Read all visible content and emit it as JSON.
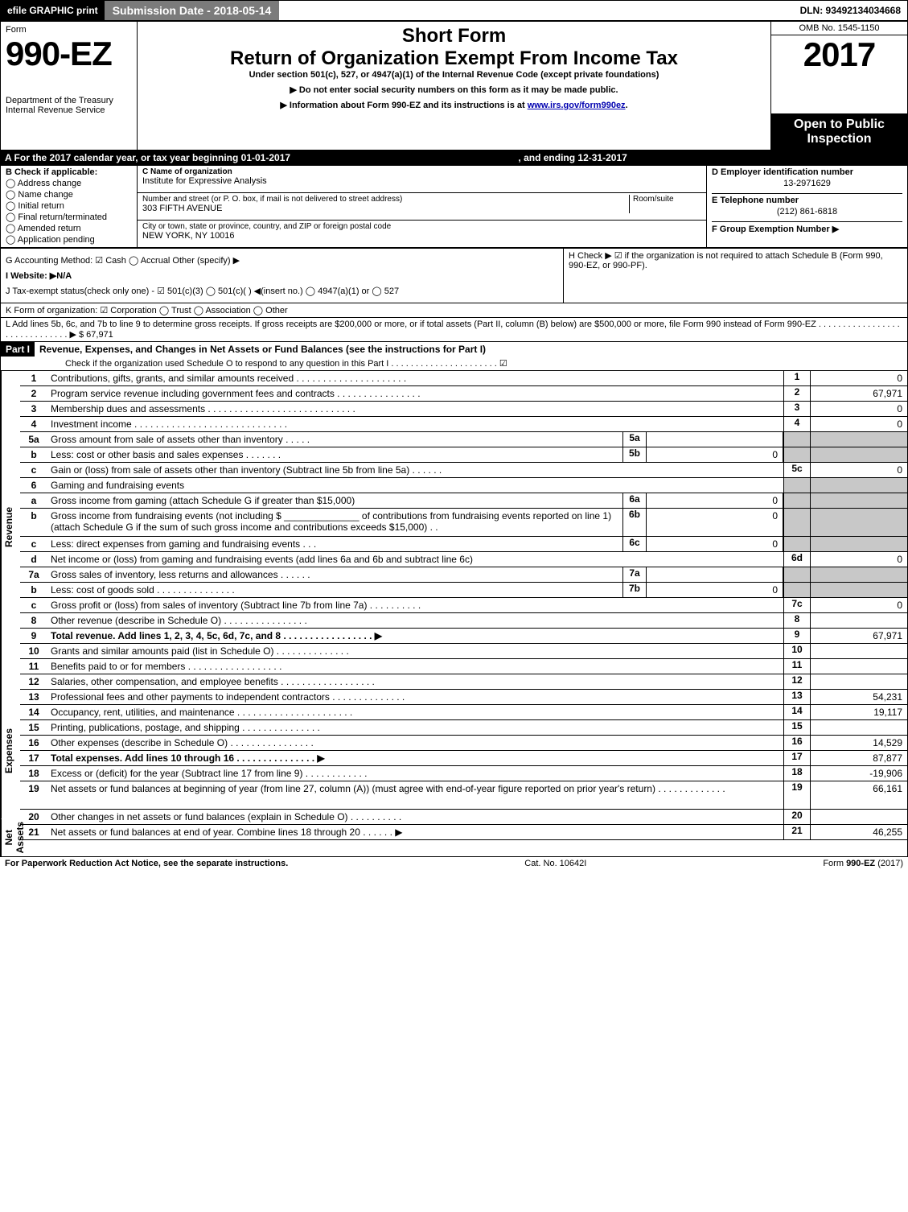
{
  "topbar": {
    "efile": "efile GRAPHIC print",
    "subdate": "Submission Date - 2018-05-14",
    "dln": "DLN: 93492134034668"
  },
  "header": {
    "form_word": "Form",
    "form_number": "990-EZ",
    "dept": "Department of the Treasury",
    "irs": "Internal Revenue Service",
    "short": "Short Form",
    "main": "Return of Organization Exempt From Income Tax",
    "sub": "Under section 501(c), 527, or 4947(a)(1) of the Internal Revenue Code (except private foundations)",
    "note1": "▶ Do not enter social security numbers on this form as it may be made public.",
    "note2": "▶ Information about Form 990-EZ and its instructions is at www.irs.gov/form990ez.",
    "omb": "OMB No. 1545-1150",
    "year": "2017",
    "open": "Open to Public Inspection"
  },
  "period": {
    "a": "A  For the 2017 calendar year, or tax year beginning 01-01-2017",
    "ending": ", and ending 12-31-2017"
  },
  "boxB": {
    "label": "B  Check if applicable:",
    "items": [
      "Address change",
      "Name change",
      "Initial return",
      "Final return/terminated",
      "Amended return",
      "Application pending"
    ]
  },
  "boxC": {
    "label": "C Name of organization",
    "name": "Institute for Expressive Analysis",
    "street_label": "Number and street (or P. O. box, if mail is not delivered to street address)",
    "room_label": "Room/suite",
    "street": "303 FIFTH AVENUE",
    "city_label": "City or town, state or province, country, and ZIP or foreign postal code",
    "city": "NEW YORK, NY  10016"
  },
  "boxD": {
    "label": "D Employer identification number",
    "value": "13-2971629"
  },
  "boxE": {
    "label": "E Telephone number",
    "value": "(212) 861-6818"
  },
  "boxF": {
    "label": "F Group Exemption Number    ▶"
  },
  "lineG": "G Accounting Method:   ☑ Cash   ◯ Accrual   Other (specify) ▶",
  "lineH": {
    "text": "H   Check ▶  ☑  if the organization is not required to attach Schedule B (Form 990, 990-EZ, or 990-PF)."
  },
  "lineI": "I Website: ▶N/A",
  "lineJ": "J Tax-exempt status(check only one) - ☑ 501(c)(3) ◯ 501(c)(  ) ◀(insert no.) ◯ 4947(a)(1) or ◯ 527",
  "lineK": "K Form of organization:   ☑ Corporation   ◯ Trust   ◯ Association   ◯ Other",
  "lineL": {
    "text": "L Add lines 5b, 6c, and 7b to line 9 to determine gross receipts. If gross receipts are $200,000 or more, or if total assets (Part II, column (B) below) are $500,000 or more, file Form 990 instead of Form 990-EZ  . . . . . . . . . . . . . . . . . . . . . . . . . . . . . . ▶ $ 67,971"
  },
  "partI": {
    "tag": "Part I",
    "title": "Revenue, Expenses, and Changes in Net Assets or Fund Balances (see the instructions for Part I)",
    "check": "Check if the organization used Schedule O to respond to any question in this Part I  . . . . . . . . . . . . . . . . . . . . . .  ☑"
  },
  "sections": {
    "revenue": "Revenue",
    "expenses": "Expenses",
    "netassets": "Net Assets"
  },
  "rows": [
    {
      "sec": "revenue",
      "ln": "1",
      "desc": "Contributions, gifts, grants, and similar amounts received  . . . . . . . . . . . . . . . . . . . . .",
      "num": "1",
      "val": "0"
    },
    {
      "sec": "revenue",
      "ln": "2",
      "desc": "Program service revenue including government fees and contracts  . . . . . . . . . . . . . . . .",
      "num": "2",
      "val": "67,971"
    },
    {
      "sec": "revenue",
      "ln": "3",
      "desc": "Membership dues and assessments  . . . . . . . . . . . . . . . . . . . . . . . . . . . .",
      "num": "3",
      "val": "0"
    },
    {
      "sec": "revenue",
      "ln": "4",
      "desc": "Investment income  . . . . . . . . . . . . . . . . . . . . . . . . . . . . .",
      "num": "4",
      "val": "0"
    },
    {
      "sec": "revenue",
      "ln": "5a",
      "desc": "Gross amount from sale of assets other than inventory  . . . . .",
      "sub_ln": "5a",
      "sub_val": "",
      "grey_right": true
    },
    {
      "sec": "revenue",
      "ln": "b",
      "desc": "Less: cost or other basis and sales expenses  . . . . . . .",
      "sub_ln": "5b",
      "sub_val": "0",
      "grey_right": true
    },
    {
      "sec": "revenue",
      "ln": "c",
      "desc": "Gain or (loss) from sale of assets other than inventory (Subtract line 5b from line 5a)  . . . . . .",
      "num": "5c",
      "val": "0"
    },
    {
      "sec": "revenue",
      "ln": "6",
      "desc": "Gaming and fundraising events",
      "grey_right": true,
      "no_num": true
    },
    {
      "sec": "revenue",
      "ln": "a",
      "desc": "Gross income from gaming (attach Schedule G if greater than $15,000)",
      "sub_ln": "6a",
      "sub_val": "0",
      "grey_right": true
    },
    {
      "sec": "revenue",
      "ln": "b",
      "desc": "Gross income from fundraising events (not including $ ______________ of contributions from fundraising events reported on line 1) (attach Schedule G if the sum of such gross income and contributions exceeds $15,000)     . .",
      "sub_ln": "6b",
      "sub_val": "0",
      "grey_right": true,
      "multi": true
    },
    {
      "sec": "revenue",
      "ln": "c",
      "desc": "Less: direct expenses from gaming and fundraising events         . . .",
      "sub_ln": "6c",
      "sub_val": "0",
      "grey_right": true
    },
    {
      "sec": "revenue",
      "ln": "d",
      "desc": "Net income or (loss) from gaming and fundraising events (add lines 6a and 6b and subtract line 6c)",
      "num": "6d",
      "val": "0"
    },
    {
      "sec": "revenue",
      "ln": "7a",
      "desc": "Gross sales of inventory, less returns and allowances  . . . . . .",
      "sub_ln": "7a",
      "sub_val": "",
      "grey_right": true
    },
    {
      "sec": "revenue",
      "ln": "b",
      "desc": "Less: cost of goods sold          . . . . . . . . . . . . . . .",
      "sub_ln": "7b",
      "sub_val": "0",
      "grey_right": true
    },
    {
      "sec": "revenue",
      "ln": "c",
      "desc": "Gross profit or (loss) from sales of inventory (Subtract line 7b from line 7a)  . . . . . . . . . .",
      "num": "7c",
      "val": "0"
    },
    {
      "sec": "revenue",
      "ln": "8",
      "desc": "Other revenue (describe in Schedule O)          . . . . . . . . . . . . . . . .",
      "num": "8",
      "val": ""
    },
    {
      "sec": "revenue",
      "ln": "9",
      "desc": "Total revenue. Add lines 1, 2, 3, 4, 5c, 6d, 7c, and 8   . . . . . . . . . . . . . . . . . ▶",
      "num": "9",
      "val": "67,971",
      "bold": true
    },
    {
      "sec": "expenses",
      "ln": "10",
      "desc": "Grants and similar amounts paid (list in Schedule O)          . . . . . . . . . . . . . .",
      "num": "10",
      "val": ""
    },
    {
      "sec": "expenses",
      "ln": "11",
      "desc": "Benefits paid to or for members          . . . . . . . . . . . . . . . . . .",
      "num": "11",
      "val": ""
    },
    {
      "sec": "expenses",
      "ln": "12",
      "desc": "Salaries, other compensation, and employee benefits . . . . . . . . . . . . . . . . . .",
      "num": "12",
      "val": ""
    },
    {
      "sec": "expenses",
      "ln": "13",
      "desc": "Professional fees and other payments to independent contractors  . . . . . . . . . . . . . .",
      "num": "13",
      "val": "54,231"
    },
    {
      "sec": "expenses",
      "ln": "14",
      "desc": "Occupancy, rent, utilities, and maintenance . . . . . . . . . . . . . . . . . . . . . .",
      "num": "14",
      "val": "19,117"
    },
    {
      "sec": "expenses",
      "ln": "15",
      "desc": "Printing, publications, postage, and shipping          . . . . . . . . . . . . . . .",
      "num": "15",
      "val": ""
    },
    {
      "sec": "expenses",
      "ln": "16",
      "desc": "Other expenses (describe in Schedule O)          . . . . . . . . . . . . . . . .",
      "num": "16",
      "val": "14,529"
    },
    {
      "sec": "expenses",
      "ln": "17",
      "desc": "Total expenses. Add lines 10 through 16           . . . . . . . . . . . . . . . ▶",
      "num": "17",
      "val": "87,877",
      "bold": true
    },
    {
      "sec": "netassets",
      "ln": "18",
      "desc": "Excess or (deficit) for the year (Subtract line 17 from line 9)          . . . . . . . . . . . .",
      "num": "18",
      "val": "-19,906"
    },
    {
      "sec": "netassets",
      "ln": "19",
      "desc": "Net assets or fund balances at beginning of year (from line 27, column (A)) (must agree with end-of-year figure reported on prior year's return)          . . . . . . . . . . . . .",
      "num": "19",
      "val": "66,161",
      "multi": true
    },
    {
      "sec": "netassets",
      "ln": "20",
      "desc": "Other changes in net assets or fund balances (explain in Schedule O)     . . . . . . . . . .",
      "num": "20",
      "val": ""
    },
    {
      "sec": "netassets",
      "ln": "21",
      "desc": "Net assets or fund balances at end of year. Combine lines 18 through 20          . . . . . . ▶",
      "num": "21",
      "val": "46,255"
    }
  ],
  "footer": {
    "left": "For Paperwork Reduction Act Notice, see the separate instructions.",
    "mid": "Cat. No. 10642I",
    "right": "Form 990-EZ (2017)"
  }
}
